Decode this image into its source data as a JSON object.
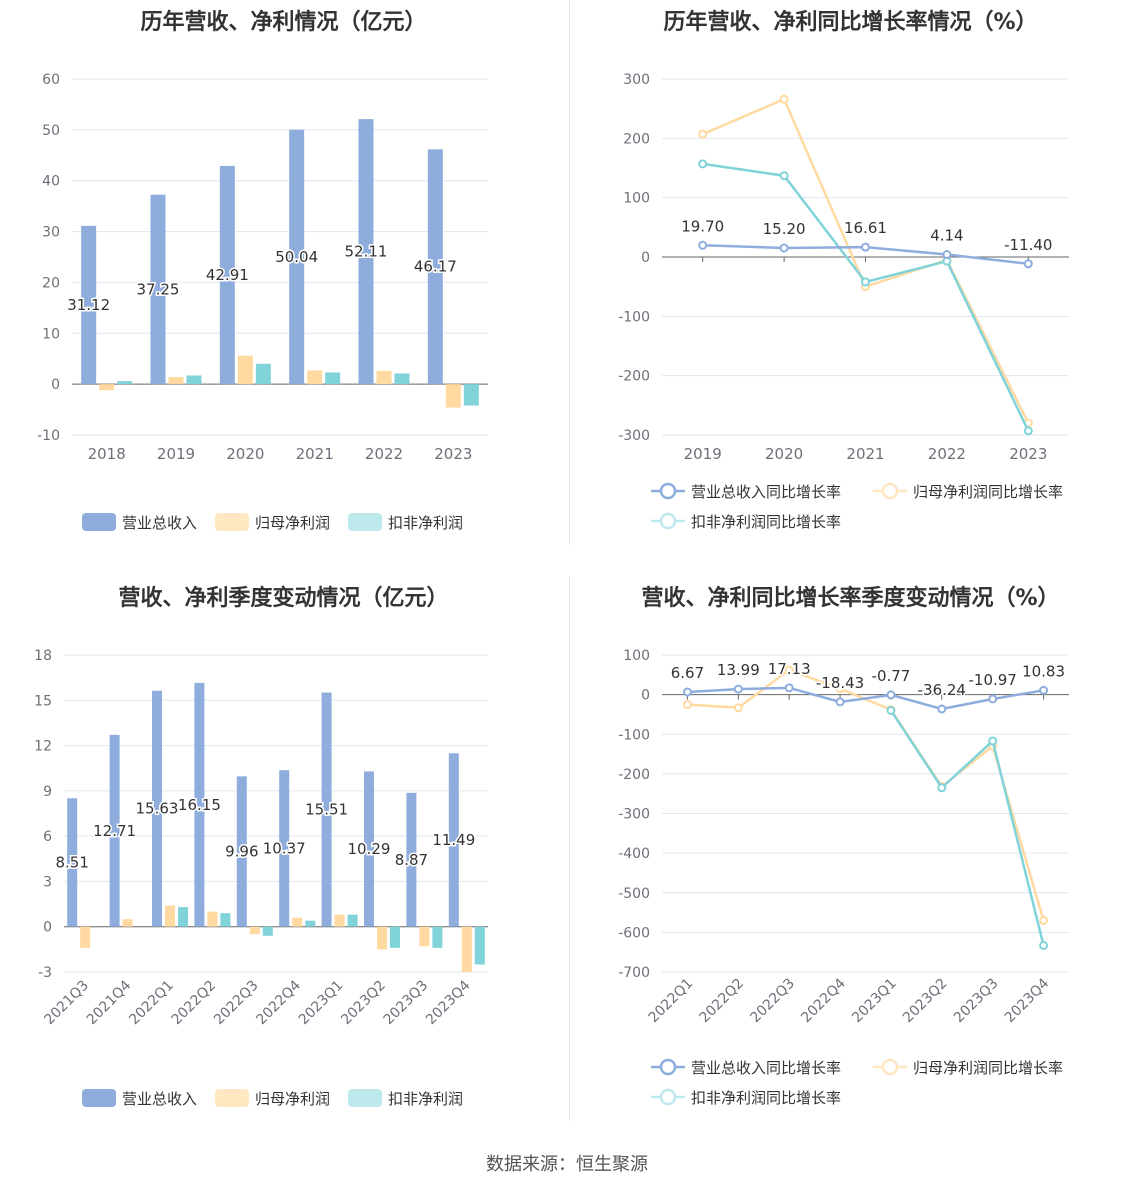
{
  "source_label": "数据来源：恒生聚源",
  "colors": {
    "revenue": "#8eaddc",
    "net_profit": "#ffd9a0",
    "deducted_profit": "#7fd3d9",
    "revenue_legend": "#8eaddc",
    "net_profit_legend": "#ffe7c2",
    "deducted_profit_legend": "#bde9ec"
  },
  "chart_data": [
    {
      "id": "annual-amount",
      "type": "bar",
      "title": "历年营收、净利情况（亿元）",
      "categories": [
        "2018",
        "2019",
        "2020",
        "2021",
        "2022",
        "2023"
      ],
      "series": [
        {
          "name": "营业总收入",
          "values": [
            31.12,
            37.25,
            42.91,
            50.04,
            52.11,
            46.17
          ]
        },
        {
          "name": "归母净利润",
          "values": [
            -1.2,
            1.4,
            5.6,
            2.7,
            2.6,
            -4.6
          ]
        },
        {
          "name": "扣非净利润",
          "values": [
            0.6,
            1.7,
            4.0,
            2.3,
            2.1,
            -4.2
          ]
        }
      ],
      "data_labels": [
        "31.12",
        "37.25",
        "42.91",
        "50.04",
        "52.11",
        "46.17"
      ],
      "yticks": [
        "60",
        "50",
        "40",
        "30",
        "20",
        "10",
        "0",
        "-10"
      ],
      "ylim": [
        -10,
        60
      ],
      "legend_position": "bottom"
    },
    {
      "id": "annual-growth",
      "type": "line",
      "title": "历年营收、净利同比增长率情况（%）",
      "categories": [
        "2019",
        "2020",
        "2021",
        "2022",
        "2023"
      ],
      "series": [
        {
          "name": "营业总收入同比增长率",
          "values": [
            19.7,
            15.2,
            16.61,
            4.14,
            -11.4
          ]
        },
        {
          "name": "归母净利润同比增长率",
          "values": [
            207,
            266,
            -50,
            -5,
            -280
          ]
        },
        {
          "name": "扣非净利润同比增长率",
          "values": [
            157,
            137,
            -42,
            -7,
            -293
          ]
        }
      ],
      "data_labels": [
        "19.70",
        "15.20",
        "16.61",
        "4.14",
        "-11.40"
      ],
      "yticks": [
        "300",
        "200",
        "100",
        "0",
        "-100",
        "-200",
        "-300"
      ],
      "ylim": [
        -300,
        300
      ],
      "legend_position": "bottom"
    },
    {
      "id": "quarterly-amount",
      "type": "bar",
      "title": "营收、净利季度变动情况（亿元）",
      "categories": [
        "2021Q3",
        "2021Q4",
        "2022Q1",
        "2022Q2",
        "2022Q3",
        "2022Q4",
        "2023Q1",
        "2023Q2",
        "2023Q3",
        "2023Q4"
      ],
      "series": [
        {
          "name": "营业总收入",
          "values": [
            8.51,
            12.71,
            15.63,
            16.15,
            9.96,
            10.37,
            15.51,
            10.29,
            8.87,
            11.49
          ]
        },
        {
          "name": "归母净利润",
          "values": [
            -1.4,
            0.5,
            1.4,
            1.0,
            -0.5,
            0.6,
            0.8,
            -1.5,
            -1.3,
            -3.0
          ]
        },
        {
          "name": "扣非净利润",
          "values": [
            0,
            0,
            1.3,
            0.9,
            -0.6,
            0.4,
            0.8,
            -1.4,
            -1.4,
            -2.5
          ]
        }
      ],
      "data_labels": [
        "8.51",
        "12.71",
        "15.63",
        "16.15",
        "9.96",
        "10.37",
        "15.51",
        "10.29",
        "8.87",
        "11.49"
      ],
      "yticks": [
        "18",
        "15",
        "12",
        "9",
        "6",
        "3",
        "0",
        "-3"
      ],
      "ylim": [
        -3,
        18
      ],
      "legend_position": "bottom"
    },
    {
      "id": "quarterly-growth",
      "type": "line",
      "title": "营收、净利同比增长率季度变动情况（%）",
      "categories": [
        "2022Q1",
        "2022Q2",
        "2022Q3",
        "2022Q4",
        "2023Q1",
        "2023Q2",
        "2023Q3",
        "2023Q4"
      ],
      "series": [
        {
          "name": "营业总收入同比增长率",
          "values": [
            6.67,
            13.99,
            17.13,
            -18.43,
            -0.77,
            -36.24,
            -10.97,
            10.83
          ]
        },
        {
          "name": "归母净利润同比增长率",
          "values": [
            -25,
            -33,
            62,
            15,
            -38,
            -232,
            -130,
            -570
          ]
        },
        {
          "name": "扣非净利润同比增长率",
          "values": [
            null,
            null,
            null,
            null,
            -40,
            -235,
            -117,
            -633
          ]
        }
      ],
      "data_labels": [
        "6.67",
        "13.99",
        "17.13",
        "-18.43",
        "-0.77",
        "-36.24",
        "-10.97",
        "10.83"
      ],
      "yticks": [
        "100",
        "0",
        "-100",
        "-200",
        "-300",
        "-400",
        "-500",
        "-600",
        "-700"
      ],
      "ylim": [
        -700,
        100
      ],
      "legend_position": "bottom"
    }
  ]
}
